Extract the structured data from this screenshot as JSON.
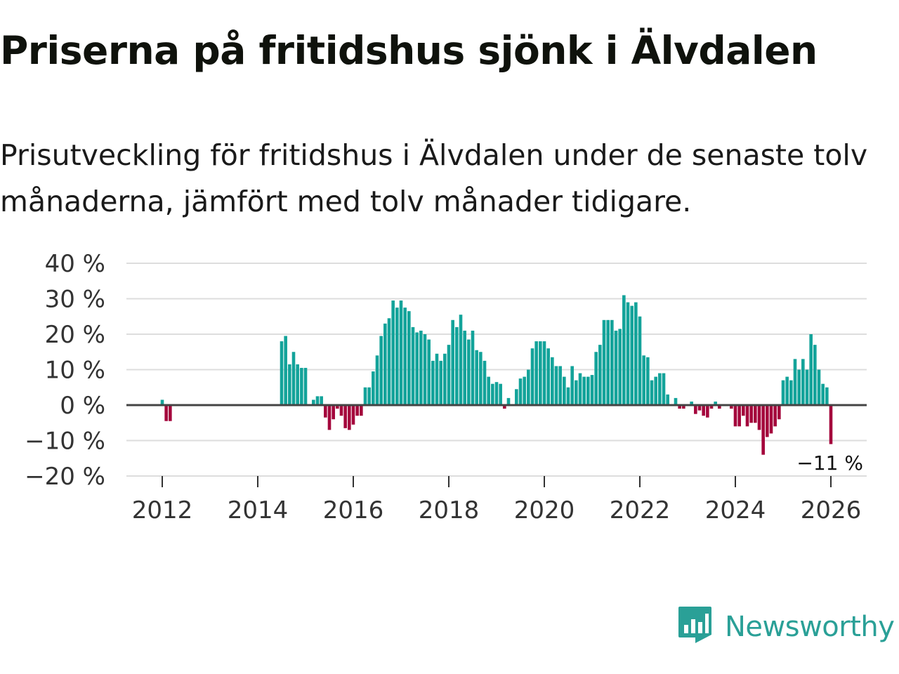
{
  "title": "Priserna på fritidshus sjönk i Älvdalen",
  "subtitle": "Prisutveckling för fritidshus i Älvdalen under de senaste tolv månaderna, jämfört med tolv månader tidigare.",
  "brand": {
    "name": "Newsworthy",
    "color": "#2aa097"
  },
  "colors": {
    "positive": "#13a39a",
    "negative": "#a4063c",
    "zero_line": "#444444",
    "grid": "#dddddd"
  },
  "chart_data": {
    "type": "bar",
    "title": "Priserna på fritidshus sjönk i Älvdalen",
    "xlabel": "",
    "ylabel": "",
    "ylim": [
      -20,
      40
    ],
    "yticks": [
      40,
      30,
      20,
      10,
      0,
      -10,
      -20
    ],
    "ytick_labels": [
      "40 %",
      "30 %",
      "20 %",
      "10 %",
      "0 %",
      "−10 %",
      "−20 %"
    ],
    "xticks": [
      2012,
      2014,
      2016,
      2018,
      2020,
      2022,
      2024,
      2026
    ],
    "xtick_labels": [
      "2012",
      "2014",
      "2016",
      "2018",
      "2020",
      "2022",
      "2024",
      "2026"
    ],
    "start_year": 2011,
    "start_month": 1,
    "series": [
      {
        "name": "Prisutveckling (%)",
        "unit": "%",
        "values": [
          0,
          0,
          0,
          0,
          0,
          0,
          0,
          0,
          0,
          0,
          0,
          0,
          1.5,
          -4.5,
          -4.5,
          0,
          0,
          0,
          0,
          0,
          0,
          0,
          0,
          0,
          0,
          0,
          0,
          0,
          0,
          0,
          0,
          0,
          0,
          0,
          0,
          0,
          0,
          0,
          0,
          0,
          0,
          0,
          18,
          19.5,
          11.5,
          15,
          11.5,
          10.5,
          10.5,
          0,
          1.5,
          2.5,
          2.5,
          -3.5,
          -7,
          -4,
          -1,
          -3,
          -6.5,
          -7,
          -5.5,
          -3,
          -3,
          5,
          5,
          9.5,
          14,
          19.5,
          23,
          24.5,
          29.5,
          27.5,
          29.5,
          27.5,
          26.5,
          22,
          20.5,
          21,
          20,
          18.5,
          12.5,
          14.5,
          12.5,
          14.5,
          17,
          24,
          22,
          25.5,
          21,
          18.5,
          21,
          15.5,
          15,
          12.5,
          8,
          6,
          6.5,
          6,
          -1,
          2,
          0,
          4.5,
          7.5,
          8,
          10,
          16,
          18,
          18,
          18,
          16,
          13.5,
          11,
          11,
          8,
          5,
          11,
          7,
          9,
          8,
          8,
          8.5,
          15,
          17,
          24,
          24,
          24,
          21,
          21.5,
          31,
          29,
          28,
          29,
          25,
          14,
          13.5,
          7,
          8,
          9,
          9,
          3,
          0,
          2,
          -1,
          -1,
          0,
          1,
          -2.5,
          -1.5,
          -3,
          -3.5,
          -1,
          1,
          -1,
          0,
          0,
          -1,
          -6,
          -6,
          -3,
          -6,
          -5,
          -5,
          -7,
          -14,
          -9,
          -8,
          -6,
          -4,
          7,
          8,
          7,
          13,
          10,
          13,
          10,
          20,
          17,
          10,
          6,
          5,
          -11
        ]
      }
    ],
    "annotations": [
      {
        "label": "−11 %",
        "value": -11
      }
    ]
  }
}
